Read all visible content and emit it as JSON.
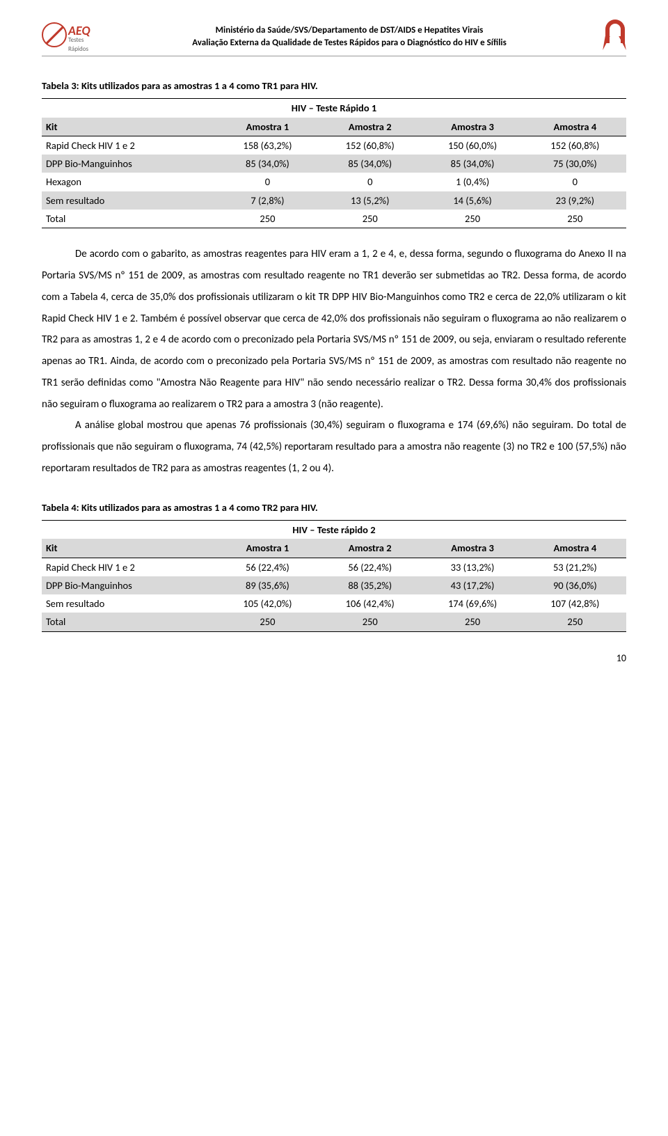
{
  "header": {
    "logo_text": "AEQ",
    "logo_sub": "Testes Rápidos",
    "line1": "Ministério da Saúde/SVS/Departamento de DST/AIDS e Hepatites Virais",
    "line2": "Avaliação Externa da Qualidade de Testes Rápidos para o Diagnóstico do HIV e Sífilis"
  },
  "table3": {
    "caption": "Tabela 3: Kits utilizados para as amostras 1 a 4 como TR1 para HIV.",
    "title": "HIV – Teste Rápido 1",
    "columns": [
      "Kit",
      "Amostra 1",
      "Amostra 2",
      "Amostra 3",
      "Amostra 4"
    ],
    "rows": [
      {
        "grey": false,
        "cells": [
          "Rapid Check HIV 1 e 2",
          "158 (63,2%)",
          "152 (60,8%)",
          "150 (60,0%)",
          "152 (60,8%)"
        ]
      },
      {
        "grey": true,
        "cells": [
          "DPP Bio-Manguinhos",
          "85 (34,0%)",
          "85 (34,0%)",
          "85 (34,0%)",
          "75 (30,0%)"
        ]
      },
      {
        "grey": false,
        "cells": [
          "Hexagon",
          "0",
          "0",
          "1 (0,4%)",
          "0"
        ]
      },
      {
        "grey": true,
        "cells": [
          "Sem resultado",
          "7 (2,8%)",
          "13 (5,2%)",
          "14 (5,6%)",
          "23 (9,2%)"
        ]
      },
      {
        "grey": false,
        "cells": [
          "Total",
          "250",
          "250",
          "250",
          "250"
        ]
      }
    ]
  },
  "paragraphs": {
    "p1": "De acordo com o gabarito, as amostras reagentes para HIV eram a 1, 2 e 4, e, dessa forma, segundo o fluxograma do Anexo II na Portaria SVS/MS nº 151 de 2009, as amostras com resultado reagente no TR1 deverão ser submetidas ao TR2. Dessa forma, de acordo com a Tabela 4, cerca de 35,0% dos profissionais utilizaram o kit TR DPP HIV Bio-Manguinhos como TR2 e cerca de 22,0% utilizaram o kit Rapid Check HIV 1 e 2. Também é possível observar que cerca de 42,0% dos profissionais não seguiram o fluxograma ao não realizarem o TR2 para as amostras 1, 2 e 4 de acordo com o preconizado pela Portaria SVS/MS nº 151 de 2009, ou seja, enviaram o resultado referente apenas ao TR1.  Ainda, de acordo com o preconizado pela Portaria SVS/MS nº 151 de 2009, as amostras com resultado não reagente no TR1 serão definidas como \"Amostra Não Reagente para HIV\" não sendo necessário realizar o TR2. Dessa forma 30,4% dos profissionais não seguiram o fluxograma ao realizarem o TR2 para a amostra 3 (não reagente).",
    "p2": "A análise global mostrou que apenas 76 profissionais (30,4%) seguiram o fluxograma e 174 (69,6%) não seguiram. Do total de profissionais que não seguiram o fluxograma, 74 (42,5%) reportaram resultado para a amostra não reagente (3) no TR2 e 100 (57,5%) não reportaram resultados de TR2 para as amostras reagentes (1, 2 ou 4)."
  },
  "table4": {
    "caption": "Tabela 4: Kits utilizados para as amostras 1 a 4 como TR2 para HIV.",
    "title": "HIV – Teste rápido 2",
    "columns": [
      "Kit",
      "Amostra 1",
      "Amostra 2",
      "Amostra 3",
      "Amostra 4"
    ],
    "rows": [
      {
        "grey": false,
        "cells": [
          "Rapid Check HIV 1 e 2",
          "56 (22,4%)",
          "56 (22,4%)",
          "33 (13,2%)",
          "53 (21,2%)"
        ]
      },
      {
        "grey": true,
        "cells": [
          "DPP Bio-Manguinhos",
          "89 (35,6%)",
          "88 (35,2%)",
          "43 (17,2%)",
          "90 (36,0%)"
        ]
      },
      {
        "grey": false,
        "cells": [
          "Sem resultado",
          "105 (42,0%)",
          "106 (42,4%)",
          "174 (69,6%)",
          "107 (42,8%)"
        ]
      },
      {
        "grey": true,
        "cells": [
          "Total",
          "250",
          "250",
          "250",
          "250"
        ]
      }
    ]
  },
  "page_number": "10",
  "colors": {
    "grey_row": "#d9d9d9",
    "red": "#c0392b",
    "text": "#000000",
    "background": "#ffffff"
  }
}
